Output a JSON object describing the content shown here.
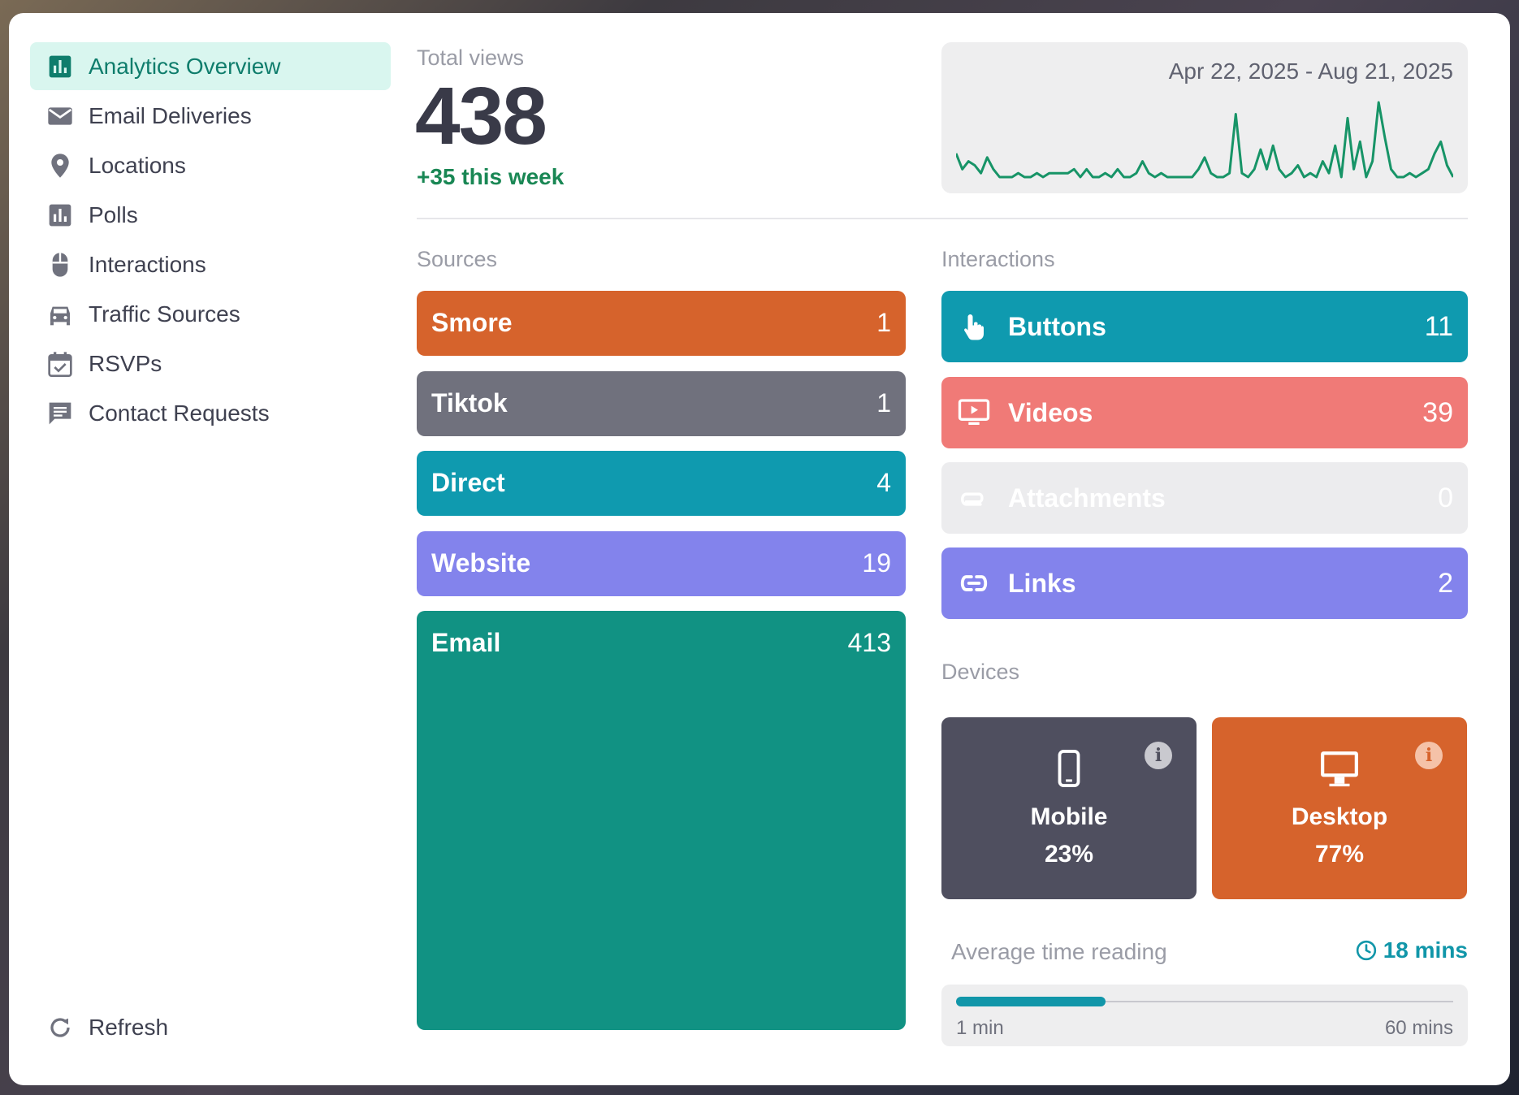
{
  "sidebar": {
    "items": [
      {
        "label": "Analytics Overview",
        "icon": "bar-chart-icon",
        "active": true
      },
      {
        "label": "Email Deliveries",
        "icon": "envelope-icon"
      },
      {
        "label": "Locations",
        "icon": "map-pin-icon"
      },
      {
        "label": "Polls",
        "icon": "bar-chart-icon"
      },
      {
        "label": "Interactions",
        "icon": "mouse-icon"
      },
      {
        "label": "Traffic Sources",
        "icon": "car-icon"
      },
      {
        "label": "RSVPs",
        "icon": "calendar-check-icon"
      },
      {
        "label": "Contact Requests",
        "icon": "message-icon"
      }
    ],
    "refresh_label": "Refresh"
  },
  "header": {
    "total_views_label": "Total views",
    "total_views": "438",
    "week_change": "+35 this week",
    "date_range": "Apr 22, 2025 - Aug 21, 2025"
  },
  "sparkline": [
    8,
    4,
    6,
    5,
    3,
    7,
    4,
    2,
    2,
    2,
    3,
    2,
    2,
    3,
    2,
    3,
    3,
    3,
    3,
    4,
    2,
    4,
    2,
    2,
    3,
    2,
    4,
    2,
    2,
    3,
    6,
    3,
    2,
    3,
    2,
    2,
    2,
    2,
    2,
    4,
    7,
    3,
    2,
    2,
    3,
    18,
    3,
    2,
    4,
    9,
    4,
    10,
    4,
    2,
    3,
    5,
    2,
    3,
    2,
    6,
    3,
    10,
    2,
    17,
    4,
    11,
    2,
    6,
    21,
    12,
    4,
    2,
    2,
    3,
    2,
    3,
    4,
    8,
    11,
    5,
    2
  ],
  "sources": {
    "label": "Sources",
    "items": [
      {
        "name": "Smore",
        "value": "1",
        "color": "#d6632c"
      },
      {
        "name": "Tiktok",
        "value": "1",
        "color": "#70717d"
      },
      {
        "name": "Direct",
        "value": "4",
        "color": "#0f9aaf"
      },
      {
        "name": "Website",
        "value": "19",
        "color": "#8383ec"
      },
      {
        "name": "Email",
        "value": "413",
        "color": "#119283"
      }
    ]
  },
  "interactions": {
    "label": "Interactions",
    "items": [
      {
        "name": "Buttons",
        "value": "11",
        "color": "#0f9aaf",
        "icon": "pointer-hand-icon"
      },
      {
        "name": "Videos",
        "value": "39",
        "color": "#f07a77",
        "icon": "video-play-icon"
      },
      {
        "name": "Attachments",
        "value": "0",
        "color": "#ececee",
        "icon": "paperclip-icon"
      },
      {
        "name": "Links",
        "value": "2",
        "color": "#8383ec",
        "icon": "link-icon"
      }
    ]
  },
  "devices": {
    "label": "Devices",
    "mobile": {
      "name": "Mobile",
      "percent": "23%",
      "color": "#4f4f5f"
    },
    "desktop": {
      "name": "Desktop",
      "percent": "77%",
      "color": "#d6632c"
    }
  },
  "reading": {
    "label": "Average time reading",
    "value": "18 mins",
    "min_label": "1 min",
    "max_label": "60 mins",
    "fraction": 0.3
  }
}
